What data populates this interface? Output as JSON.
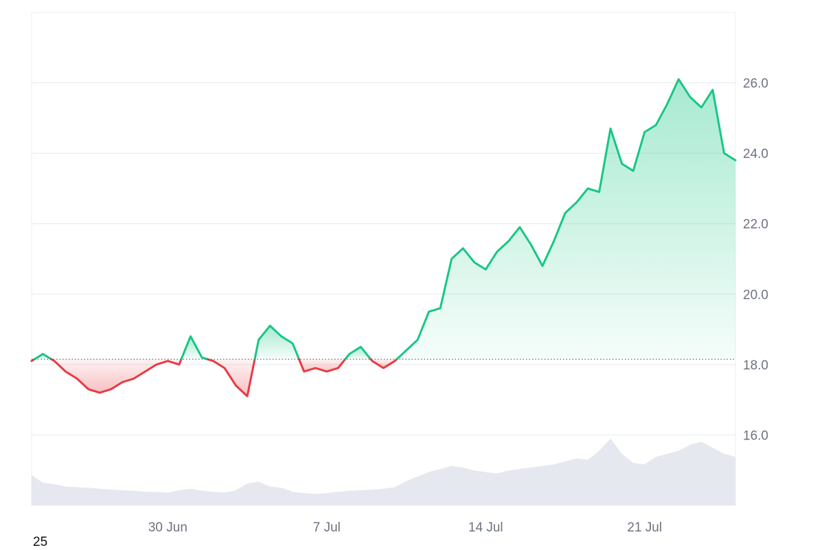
{
  "chart_data": {
    "type": "area",
    "baseline": 18.15,
    "ylim": [
      14.0,
      28.0
    ],
    "y_ticks": [
      "16.0",
      "18.0",
      "20.0",
      "22.0",
      "24.0",
      "26.0"
    ],
    "x_ticks": [
      {
        "label": "30 Jun",
        "date": "2025-06-30"
      },
      {
        "label": "7 Jul",
        "date": "2025-07-07"
      },
      {
        "label": "14 Jul",
        "date": "2025-07-14"
      },
      {
        "label": "21 Jul",
        "date": "2025-07-21"
      }
    ],
    "xlim": [
      "2025-06-24T00:00",
      "2025-07-25T00:00"
    ],
    "series": [
      {
        "x": [
          "2025-06-24T00:00",
          "2025-06-24T12:00",
          "2025-06-25T00:00",
          "2025-06-25T12:00",
          "2025-06-26T00:00",
          "2025-06-26T12:00",
          "2025-06-27T00:00",
          "2025-06-27T12:00",
          "2025-06-28T00:00",
          "2025-06-28T12:00",
          "2025-06-29T00:00",
          "2025-06-29T12:00",
          "2025-06-30T00:00",
          "2025-06-30T12:00",
          "2025-07-01T00:00",
          "2025-07-01T12:00",
          "2025-07-02T00:00",
          "2025-07-02T12:00",
          "2025-07-03T00:00",
          "2025-07-03T12:00",
          "2025-07-04T00:00",
          "2025-07-04T12:00",
          "2025-07-05T00:00",
          "2025-07-05T12:00",
          "2025-07-06T00:00",
          "2025-07-06T12:00",
          "2025-07-07T00:00",
          "2025-07-07T12:00",
          "2025-07-08T00:00",
          "2025-07-08T12:00",
          "2025-07-09T00:00",
          "2025-07-09T12:00",
          "2025-07-10T00:00",
          "2025-07-10T12:00",
          "2025-07-11T00:00",
          "2025-07-11T12:00",
          "2025-07-12T00:00",
          "2025-07-12T12:00",
          "2025-07-13T00:00",
          "2025-07-13T12:00",
          "2025-07-14T00:00",
          "2025-07-14T12:00",
          "2025-07-15T00:00",
          "2025-07-15T12:00",
          "2025-07-16T00:00",
          "2025-07-16T12:00",
          "2025-07-17T00:00",
          "2025-07-17T12:00",
          "2025-07-18T00:00",
          "2025-07-18T12:00",
          "2025-07-19T00:00",
          "2025-07-19T12:00",
          "2025-07-20T00:00",
          "2025-07-20T12:00",
          "2025-07-21T00:00",
          "2025-07-21T12:00",
          "2025-07-22T00:00",
          "2025-07-22T12:00",
          "2025-07-23T00:00",
          "2025-07-23T12:00",
          "2025-07-24T00:00",
          "2025-07-24T12:00",
          "2025-07-25T00:00"
        ],
        "y": [
          18.1,
          18.3,
          18.1,
          17.8,
          17.6,
          17.3,
          17.2,
          17.3,
          17.5,
          17.6,
          17.8,
          18.0,
          18.1,
          18.0,
          18.8,
          18.2,
          18.1,
          17.9,
          17.4,
          17.1,
          18.7,
          19.1,
          18.8,
          18.6,
          17.8,
          17.9,
          17.8,
          17.9,
          18.3,
          18.5,
          18.1,
          17.9,
          18.1,
          18.4,
          18.7,
          19.5,
          19.6,
          21.0,
          21.3,
          20.9,
          20.7,
          21.2,
          21.5,
          21.9,
          21.4,
          20.8,
          21.5,
          22.3,
          22.6,
          23.0,
          22.9,
          24.7,
          23.7,
          23.5,
          24.6,
          24.8,
          25.4,
          26.1,
          25.6,
          25.3,
          25.8,
          24.0,
          23.8
        ]
      }
    ],
    "volume": {
      "values": [
        1.0,
        0.75,
        0.7,
        0.62,
        0.6,
        0.58,
        0.55,
        0.52,
        0.5,
        0.48,
        0.45,
        0.44,
        0.42,
        0.5,
        0.55,
        0.48,
        0.45,
        0.42,
        0.5,
        0.72,
        0.78,
        0.62,
        0.58,
        0.45,
        0.4,
        0.38,
        0.4,
        0.45,
        0.48,
        0.5,
        0.52,
        0.55,
        0.6,
        0.8,
        0.95,
        1.1,
        1.2,
        1.3,
        1.25,
        1.15,
        1.1,
        1.05,
        1.15,
        1.2,
        1.25,
        1.3,
        1.35,
        1.45,
        1.55,
        1.5,
        1.8,
        2.2,
        1.7,
        1.4,
        1.35,
        1.6,
        1.7,
        1.8,
        2.0,
        2.1,
        1.9,
        1.7,
        1.6
      ],
      "vmax": 2.4
    },
    "colors": {
      "up": "#16c784",
      "down": "#ea3943",
      "volume": "#e5e8ee",
      "grid": "#e6e8ec",
      "baseline": "#555555"
    }
  },
  "corner_label": "25"
}
